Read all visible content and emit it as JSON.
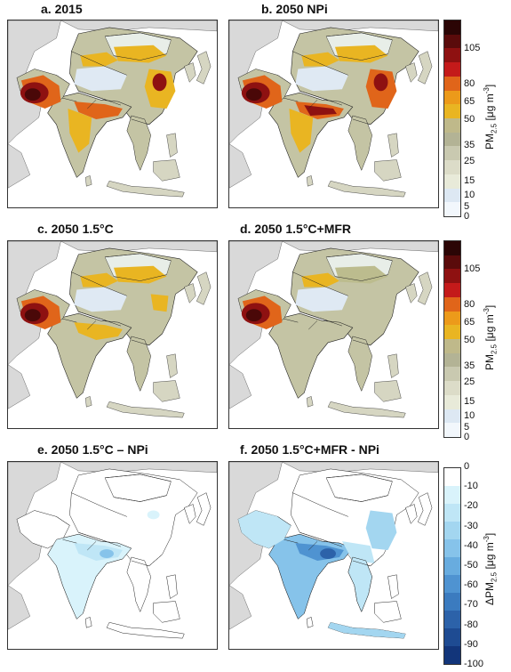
{
  "panels": [
    {
      "title": "a. 2015",
      "kind": "conc",
      "level": "high2015"
    },
    {
      "title": "b. 2050 NPi",
      "kind": "conc",
      "level": "npi"
    },
    {
      "title": "c. 2050 1.5°C",
      "kind": "conc",
      "level": "c15"
    },
    {
      "title": "d. 2050 1.5°C+MFR",
      "kind": "conc",
      "level": "mfr"
    },
    {
      "title": "e. 2050 1.5°C – NPi",
      "kind": "diff",
      "level": "small"
    },
    {
      "title": "f. 2050 1.5°C+MFR - NPi",
      "kind": "diff",
      "level": "large"
    }
  ],
  "conc_colorbar": {
    "label_main": "PM",
    "label_sub": "2.5",
    "label_unit": " [μg m",
    "label_sup": "-3",
    "label_close": "]",
    "ticks": [
      "105",
      "80",
      "65",
      "50",
      "35",
      "25",
      "15",
      "10",
      "5",
      "0"
    ],
    "colors": [
      "#2b0505",
      "#5a0b0b",
      "#8e1111",
      "#c41a1a",
      "#e0651a",
      "#ec9a1a",
      "#e9b522",
      "#bfb98a",
      "#b3b395",
      "#c9c9b0",
      "#dcdcc8",
      "#e8ead9",
      "#dde8f3",
      "#f2f7fc"
    ]
  },
  "diff_colorbar": {
    "label_main": "ΔPM",
    "label_sub": "2.5",
    "label_unit": " [μg m",
    "label_sup": "-3",
    "label_close": "]",
    "ticks": [
      "0",
      "-10",
      "-20",
      "-30",
      "-40",
      "-50",
      "-60",
      "-70",
      "-80",
      "-90",
      "-100"
    ],
    "colors": [
      "#ffffff",
      "#d9f3fb",
      "#bfe6f6",
      "#a3d6f0",
      "#86c3ea",
      "#68acdf",
      "#4f93d1",
      "#3b7bbf",
      "#2c62a9",
      "#1e4b92",
      "#12357a"
    ]
  },
  "colors": {
    "ocean": "#ffffff",
    "outside_land": "#d9d9d9",
    "border": "#222222"
  }
}
